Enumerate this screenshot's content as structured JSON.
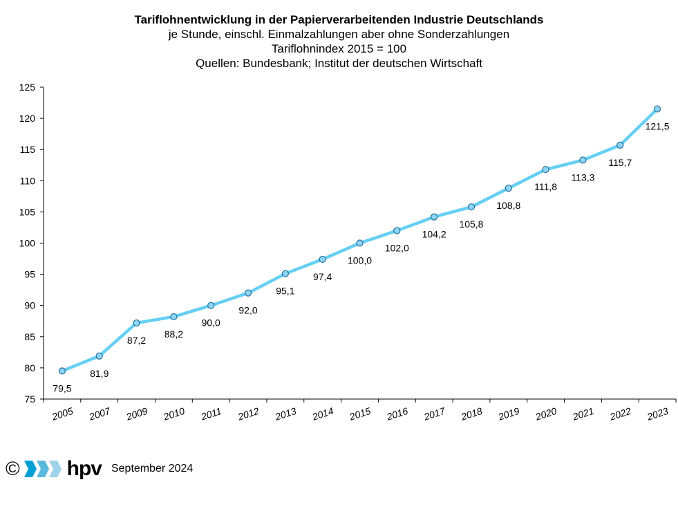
{
  "titles": {
    "line1": "Tariflohnentwicklung in der Papierverarbeitenden Industrie Deutschlands",
    "line2": "je Stunde, einschl. Einmalzahlungen  aber ohne Sonderzahlungen",
    "line3": "Tariflohnindex 2015 = 100",
    "line4": "Quellen: Bundesbank; Institut der deutschen Wirtschaft"
  },
  "chart_data": {
    "type": "line",
    "categories": [
      "2005",
      "2007",
      "2009",
      "2010",
      "2011",
      "2012",
      "2013",
      "2014",
      "2015",
      "2016",
      "2017",
      "2018",
      "2019",
      "2020",
      "2021",
      "2022",
      "2023"
    ],
    "values": [
      79.5,
      81.9,
      87.2,
      88.2,
      90.0,
      92.0,
      95.1,
      97.4,
      100.0,
      102.0,
      104.2,
      105.8,
      108.8,
      111.8,
      113.3,
      115.7,
      121.5
    ],
    "data_labels": [
      "79,5",
      "81,9",
      "87,2",
      "88,2",
      "90,0",
      "92,0",
      "95,1",
      "97,4",
      "100,0",
      "102,0",
      "104,2",
      "105,8",
      "108,8",
      "111,8",
      "113,3",
      "115,7",
      "121,5"
    ],
    "ylim": [
      75,
      125
    ],
    "yticks": [
      75,
      80,
      85,
      90,
      95,
      100,
      105,
      110,
      115,
      120,
      125
    ],
    "grid": false,
    "line_color": "#66cff4",
    "marker_color": "#8fd4f5",
    "marker_edge": "#1f6f99"
  },
  "footer": {
    "copyright": "©",
    "brand": "hpv",
    "date": "September 2024",
    "logo_colors": [
      "#00a0d6",
      "#5ab8dc",
      "#9ed3ea"
    ]
  }
}
